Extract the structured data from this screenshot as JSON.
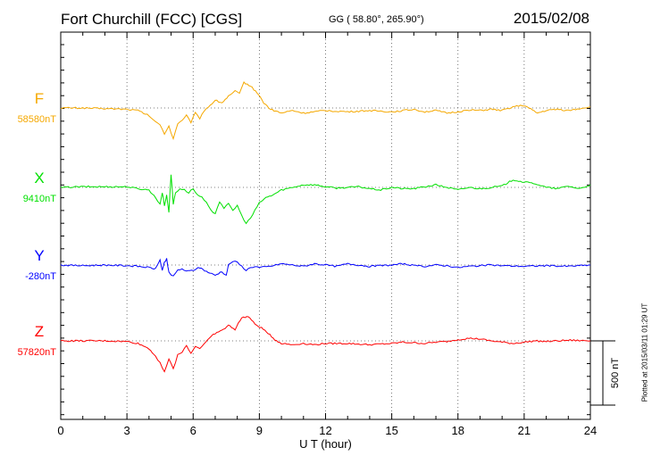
{
  "header": {
    "title": "Fort Churchill (FCC)  [CGS]",
    "coords": "GG ( 58.80°, 265.90°)",
    "date": "2015/02/08",
    "plotted": "Plotted at 2015/03/11 01:29 UT"
  },
  "colors": {
    "F": "#f5a800",
    "X": "#00e000",
    "Y": "#0000ff",
    "Z": "#ff0000"
  },
  "chart_data": {
    "type": "line",
    "title": "Fort Churchill (FCC)  [CGS]",
    "xlabel": "U T (hour)",
    "ylabel": "",
    "xlim": [
      0,
      24
    ],
    "xticks": [
      0,
      3,
      6,
      9,
      12,
      15,
      18,
      21,
      24
    ],
    "grid": true,
    "scale_bar": {
      "label": "500 nT",
      "value": 500
    },
    "series": [
      {
        "name": "F",
        "baseline_label": "58580nT",
        "color": "#f5a800",
        "points": [
          [
            0,
            0
          ],
          [
            1,
            0
          ],
          [
            2,
            -5
          ],
          [
            3,
            -10
          ],
          [
            3.5,
            -20
          ],
          [
            4,
            -60
          ],
          [
            4.3,
            -110
          ],
          [
            4.5,
            -130
          ],
          [
            4.7,
            -200
          ],
          [
            4.9,
            -140
          ],
          [
            5.1,
            -240
          ],
          [
            5.3,
            -120
          ],
          [
            5.5,
            -100
          ],
          [
            5.7,
            -60
          ],
          [
            5.9,
            -110
          ],
          [
            6.1,
            -40
          ],
          [
            6.3,
            -80
          ],
          [
            6.5,
            -20
          ],
          [
            6.7,
            10
          ],
          [
            7,
            60
          ],
          [
            7.3,
            40
          ],
          [
            7.6,
            90
          ],
          [
            7.9,
            130
          ],
          [
            8.1,
            110
          ],
          [
            8.3,
            200
          ],
          [
            8.6,
            170
          ],
          [
            8.9,
            120
          ],
          [
            9.2,
            40
          ],
          [
            9.5,
            -10
          ],
          [
            10,
            -40
          ],
          [
            10.5,
            -20
          ],
          [
            11,
            -40
          ],
          [
            11.5,
            -30
          ],
          [
            12,
            -20
          ],
          [
            13,
            -30
          ],
          [
            14,
            -20
          ],
          [
            15,
            -30
          ],
          [
            15.5,
            -20
          ],
          [
            16,
            -10
          ],
          [
            16.5,
            -30
          ],
          [
            17,
            -20
          ],
          [
            17.5,
            -40
          ],
          [
            18,
            -30
          ],
          [
            18.5,
            -15
          ],
          [
            19,
            -20
          ],
          [
            19.5,
            -10
          ],
          [
            20,
            -20
          ],
          [
            20.5,
            10
          ],
          [
            21,
            20
          ],
          [
            21.3,
            -10
          ],
          [
            21.6,
            -40
          ],
          [
            22,
            -20
          ],
          [
            22.5,
            -10
          ],
          [
            23,
            -20
          ],
          [
            24,
            10
          ]
        ]
      },
      {
        "name": "X",
        "baseline_label": "9410nT",
        "color": "#00e000",
        "points": [
          [
            0,
            0
          ],
          [
            1,
            5
          ],
          [
            2,
            5
          ],
          [
            3,
            5
          ],
          [
            3.5,
            -10
          ],
          [
            4,
            -20
          ],
          [
            4.3,
            -80
          ],
          [
            4.5,
            -130
          ],
          [
            4.6,
            -40
          ],
          [
            4.7,
            -140
          ],
          [
            4.8,
            -60
          ],
          [
            4.9,
            -190
          ],
          [
            5,
            100
          ],
          [
            5.1,
            -130
          ],
          [
            5.2,
            -40
          ],
          [
            5.4,
            -10
          ],
          [
            5.6,
            -20
          ],
          [
            5.8,
            -40
          ],
          [
            6,
            -10
          ],
          [
            6.2,
            -60
          ],
          [
            6.4,
            -80
          ],
          [
            6.6,
            -120
          ],
          [
            6.8,
            -180
          ],
          [
            7,
            -200
          ],
          [
            7.2,
            -110
          ],
          [
            7.4,
            -160
          ],
          [
            7.6,
            -130
          ],
          [
            7.8,
            -180
          ],
          [
            8,
            -140
          ],
          [
            8.2,
            -220
          ],
          [
            8.4,
            -280
          ],
          [
            8.6,
            -240
          ],
          [
            8.8,
            -180
          ],
          [
            9,
            -120
          ],
          [
            9.3,
            -80
          ],
          [
            9.6,
            -60
          ],
          [
            10,
            -20
          ],
          [
            10.5,
            0
          ],
          [
            11,
            20
          ],
          [
            11.5,
            20
          ],
          [
            12,
            5
          ],
          [
            12.5,
            -5
          ],
          [
            13,
            0
          ],
          [
            13.5,
            5
          ],
          [
            14,
            -10
          ],
          [
            14.5,
            -20
          ],
          [
            15,
            0
          ],
          [
            15.5,
            -10
          ],
          [
            16,
            -10
          ],
          [
            16.5,
            5
          ],
          [
            17,
            20
          ],
          [
            17.5,
            0
          ],
          [
            18,
            -20
          ],
          [
            18.5,
            0
          ],
          [
            19,
            -10
          ],
          [
            19.5,
            0
          ],
          [
            20,
            10
          ],
          [
            20.5,
            60
          ],
          [
            21,
            40
          ],
          [
            21.5,
            30
          ],
          [
            22,
            0
          ],
          [
            22.5,
            -10
          ],
          [
            23,
            10
          ],
          [
            23.5,
            -10
          ],
          [
            24,
            20
          ]
        ]
      },
      {
        "name": "Y",
        "baseline_label": "-280nT",
        "color": "#0000ff",
        "points": [
          [
            0,
            0
          ],
          [
            1,
            -5
          ],
          [
            2,
            0
          ],
          [
            3,
            -5
          ],
          [
            3.5,
            -10
          ],
          [
            4,
            -20
          ],
          [
            4.3,
            -30
          ],
          [
            4.5,
            40
          ],
          [
            4.6,
            -40
          ],
          [
            4.7,
            20
          ],
          [
            4.8,
            50
          ],
          [
            4.9,
            -60
          ],
          [
            5.1,
            -90
          ],
          [
            5.3,
            -40
          ],
          [
            5.5,
            -30
          ],
          [
            5.7,
            -50
          ],
          [
            6,
            -40
          ],
          [
            6.3,
            -20
          ],
          [
            6.6,
            -50
          ],
          [
            7,
            -80
          ],
          [
            7.3,
            -50
          ],
          [
            7.5,
            -80
          ],
          [
            7.6,
            0
          ],
          [
            7.8,
            30
          ],
          [
            8,
            20
          ],
          [
            8.2,
            -10
          ],
          [
            8.4,
            -40
          ],
          [
            8.6,
            -20
          ],
          [
            8.8,
            -10
          ],
          [
            9,
            -20
          ],
          [
            9.5,
            -10
          ],
          [
            10,
            10
          ],
          [
            10.5,
            0
          ],
          [
            11,
            -10
          ],
          [
            11.5,
            10
          ],
          [
            12,
            0
          ],
          [
            12.5,
            -10
          ],
          [
            13,
            10
          ],
          [
            13.5,
            0
          ],
          [
            14,
            -10
          ],
          [
            14.5,
            -5
          ],
          [
            15,
            0
          ],
          [
            15.5,
            10
          ],
          [
            16,
            -5
          ],
          [
            16.5,
            -10
          ],
          [
            17,
            0
          ],
          [
            17.5,
            -5
          ],
          [
            18,
            -20
          ],
          [
            18.5,
            -10
          ],
          [
            19,
            -5
          ],
          [
            19.5,
            0
          ],
          [
            20,
            -5
          ],
          [
            21,
            -10
          ],
          [
            22,
            -5
          ],
          [
            23,
            -10
          ],
          [
            24,
            0
          ]
        ]
      },
      {
        "name": "Z",
        "baseline_label": "57820nT",
        "color": "#ff0000",
        "points": [
          [
            0,
            0
          ],
          [
            1,
            0
          ],
          [
            2,
            0
          ],
          [
            3,
            -5
          ],
          [
            3.5,
            -20
          ],
          [
            4,
            -60
          ],
          [
            4.3,
            -120
          ],
          [
            4.5,
            -170
          ],
          [
            4.7,
            -240
          ],
          [
            4.9,
            -140
          ],
          [
            5.1,
            -220
          ],
          [
            5.3,
            -110
          ],
          [
            5.5,
            -90
          ],
          [
            5.7,
            -30
          ],
          [
            5.9,
            -100
          ],
          [
            6.1,
            -40
          ],
          [
            6.3,
            -60
          ],
          [
            6.5,
            -20
          ],
          [
            6.8,
            30
          ],
          [
            7,
            60
          ],
          [
            7.3,
            80
          ],
          [
            7.6,
            120
          ],
          [
            7.9,
            90
          ],
          [
            8.2,
            180
          ],
          [
            8.5,
            190
          ],
          [
            8.8,
            130
          ],
          [
            9.1,
            100
          ],
          [
            9.4,
            60
          ],
          [
            9.7,
            10
          ],
          [
            10,
            -20
          ],
          [
            10.5,
            -30
          ],
          [
            11,
            -20
          ],
          [
            11.5,
            -30
          ],
          [
            12,
            -20
          ],
          [
            13,
            -20
          ],
          [
            14,
            -30
          ],
          [
            15,
            -20
          ],
          [
            15.5,
            -10
          ],
          [
            16,
            -15
          ],
          [
            16.5,
            -20
          ],
          [
            17,
            -10
          ],
          [
            17.5,
            -5
          ],
          [
            18,
            10
          ],
          [
            18.5,
            20
          ],
          [
            19,
            15
          ],
          [
            19.5,
            0
          ],
          [
            20,
            -10
          ],
          [
            20.5,
            -20
          ],
          [
            21,
            -10
          ],
          [
            21.5,
            0
          ],
          [
            22,
            -5
          ],
          [
            23,
            5
          ],
          [
            24,
            0
          ]
        ]
      }
    ]
  }
}
